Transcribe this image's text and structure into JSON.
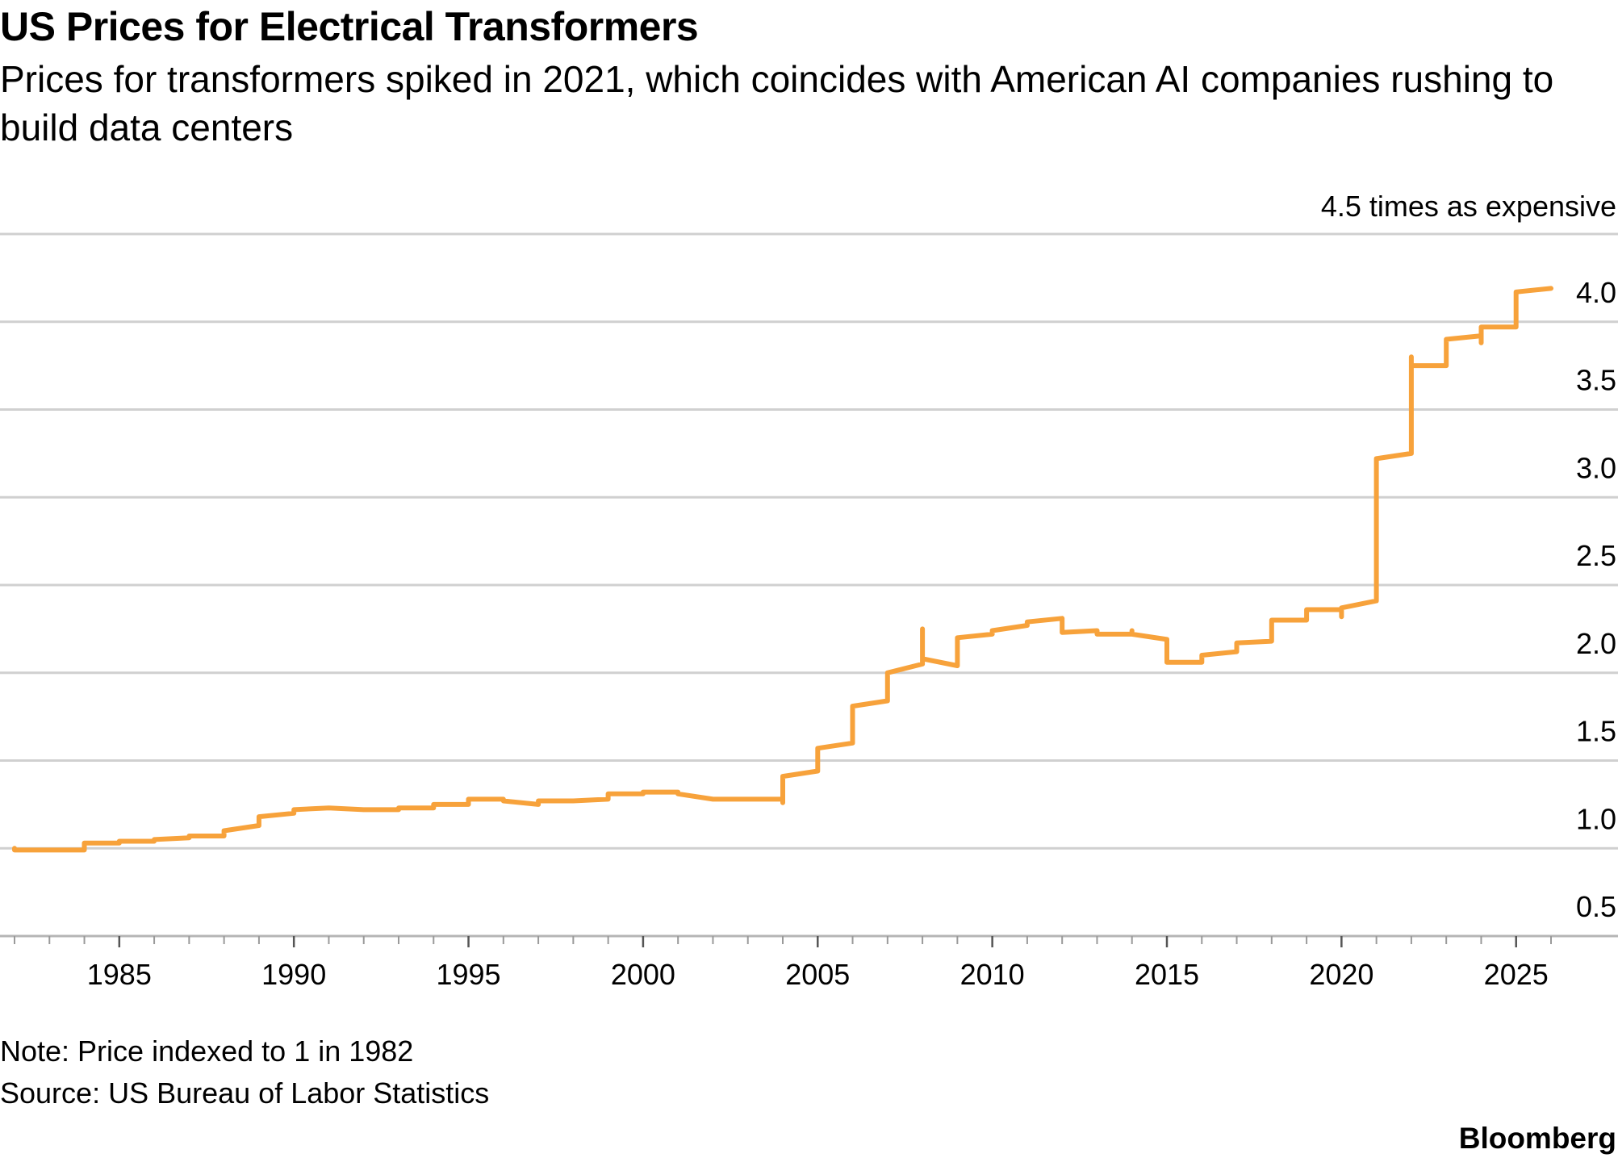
{
  "title": "US Prices for Electrical Transformers",
  "subtitle": "Prices for transformers spiked in 2021, which coincides with American AI companies rushing to build data centers",
  "note": "Note: Price indexed to 1 in 1982",
  "source": "Source: US Bureau of Labor Statistics",
  "brand": "Bloomberg",
  "chart_data": {
    "type": "line",
    "title": "US Prices for Electrical Transformers",
    "y_unit_label": "4.5 times as expensive",
    "ylim": [
      0.5,
      4.5
    ],
    "xlim": [
      1982,
      2026.5
    ],
    "y_ticks": [
      "0.5",
      "1.0",
      "1.5",
      "2.0",
      "2.5",
      "3.0",
      "3.5",
      "4.0"
    ],
    "x_ticks": [
      "1985",
      "1990",
      "1995",
      "2000",
      "2005",
      "2010",
      "2015",
      "2020",
      "2025"
    ],
    "grid": true,
    "y_axis_side": "right",
    "line_color": "#f7a23b",
    "series": [
      {
        "x": [
          1982.0,
          1982.0,
          1982.0,
          1983.0,
          1983.0,
          1984.0,
          1984.0,
          1985.0,
          1985.0,
          1986.0,
          1986.0,
          1987.0,
          1987.0,
          1988.0,
          1988.0,
          1989.0,
          1989.0,
          1990.0,
          1990.0,
          1991.0,
          1991.0,
          1992.0,
          1992.0,
          1993.0,
          1993.0,
          1994.0,
          1994.0,
          1995.0,
          1995.0,
          1996.0,
          1996.0,
          1997.0,
          1997.0,
          1998.0,
          1998.0,
          1999.0,
          1999.0,
          2000.0,
          2000.0,
          2001.0,
          2001.0,
          2002.0,
          2002.0,
          2003.0,
          2003.0,
          2004.0,
          2004.0,
          2004.0,
          2005.0,
          2005.0,
          2006.0,
          2006.0,
          2007.0,
          2007.0,
          2008.0,
          2008.0,
          2008.0,
          2009.0,
          2009.0,
          2010.0,
          2010.0,
          2011.0,
          2011.0,
          2011.0,
          2012.0,
          2012.0,
          2013.0,
          2013.0,
          2014.0,
          2014.0,
          2014.0,
          2015.0,
          2015.0,
          2016.0,
          2016.0,
          2017.0,
          2017.0,
          2018.0,
          2018.0,
          2019.0,
          2019.0,
          2020.0,
          2020.0,
          2020.0,
          2021.0,
          2021.0,
          2022.0,
          2022.0,
          2022.0,
          2023.0,
          2023.0,
          2024.0,
          2024.0,
          2024.0,
          2025.0,
          2025.0,
          2026.0
        ],
        "y": [
          1.0,
          0.99,
          0.99,
          0.99,
          0.99,
          0.99,
          1.03,
          1.03,
          1.04,
          1.04,
          1.05,
          1.06,
          1.07,
          1.07,
          1.1,
          1.13,
          1.18,
          1.2,
          1.22,
          1.23,
          1.23,
          1.22,
          1.22,
          1.22,
          1.23,
          1.23,
          1.25,
          1.25,
          1.28,
          1.28,
          1.27,
          1.25,
          1.27,
          1.27,
          1.27,
          1.28,
          1.31,
          1.31,
          1.32,
          1.32,
          1.31,
          1.28,
          1.28,
          1.28,
          1.28,
          1.28,
          1.26,
          1.41,
          1.44,
          1.57,
          1.6,
          1.81,
          1.84,
          2.0,
          2.05,
          2.25,
          2.08,
          2.04,
          2.2,
          2.22,
          2.24,
          2.27,
          2.27,
          2.29,
          2.31,
          2.23,
          2.24,
          2.22,
          2.22,
          2.24,
          2.22,
          2.19,
          2.06,
          2.06,
          2.1,
          2.12,
          2.17,
          2.18,
          2.3,
          2.3,
          2.36,
          2.36,
          2.32,
          2.37,
          2.41,
          3.22,
          3.25,
          3.8,
          3.75,
          3.75,
          3.9,
          3.92,
          3.88,
          3.97,
          3.97,
          4.17,
          4.19
        ]
      }
    ]
  }
}
